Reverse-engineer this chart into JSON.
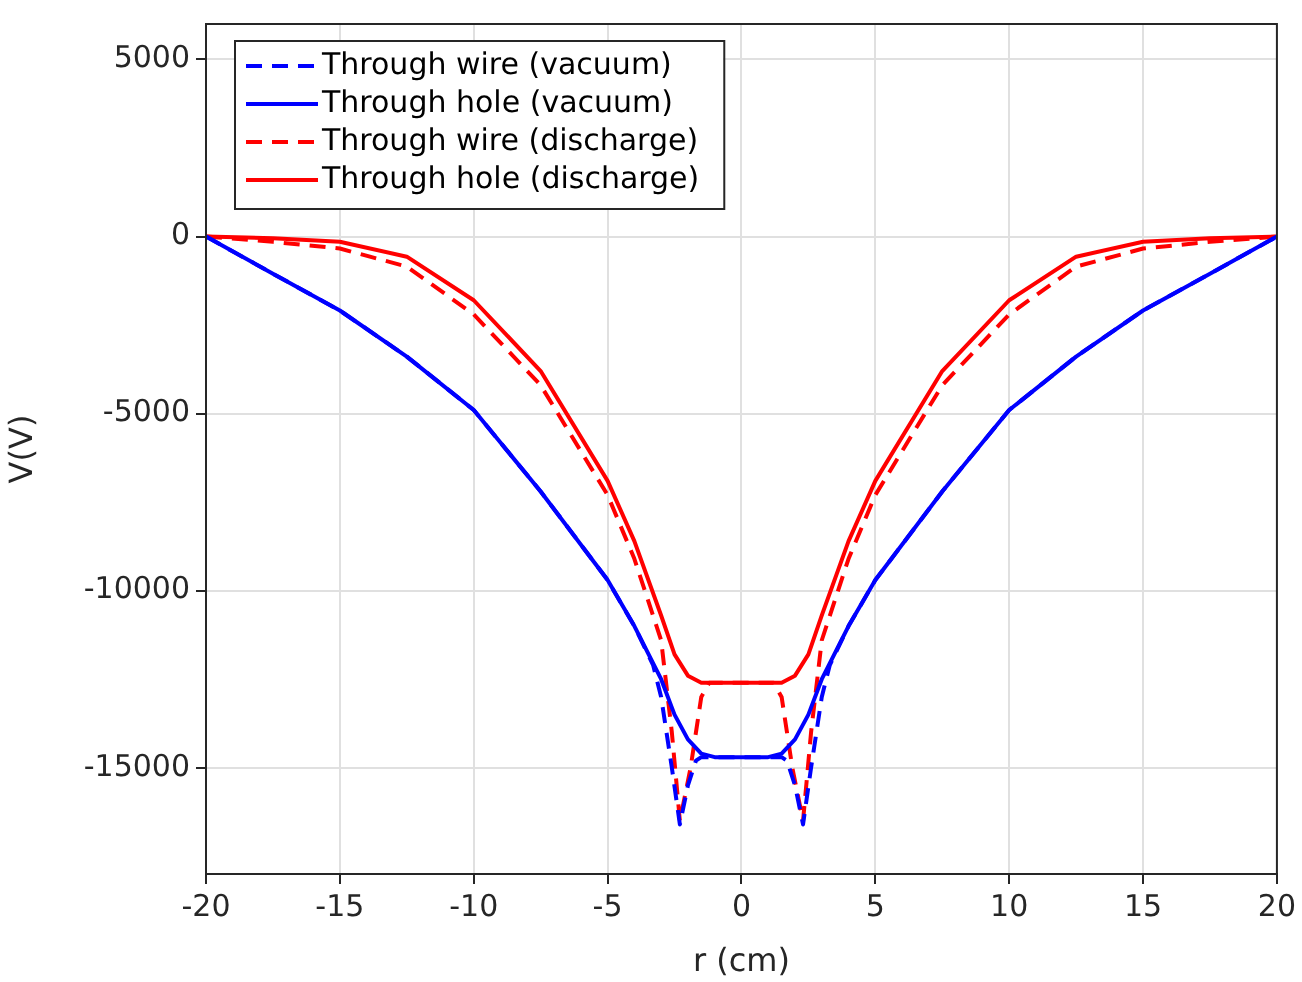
{
  "chart_data": {
    "type": "line",
    "xlabel": "r (cm)",
    "ylabel": "V(V)",
    "xlim": [
      -20,
      20
    ],
    "ylim": [
      -18000,
      6000
    ],
    "xticks": [
      -20,
      -15,
      -10,
      -5,
      0,
      5,
      10,
      15,
      20
    ],
    "yticks": [
      -15000,
      -10000,
      -5000,
      0,
      5000
    ],
    "grid": true,
    "legend": "top left",
    "marker": "none",
    "series": [
      {
        "name": "Through wire (vacuum)",
        "color": "#0000ff",
        "line_style": "dashed",
        "x": [
          -20,
          -17.5,
          -15,
          -12.5,
          -10,
          -7.5,
          -5,
          -4,
          -3.3,
          -3,
          -2.6,
          -2.3,
          -2,
          -1.7,
          -1.5,
          1.5,
          1.7,
          2,
          2.3,
          2.6,
          3,
          3.3,
          4,
          5,
          7.5,
          10,
          12.5,
          15,
          17.5,
          20
        ],
        "values": [
          0,
          -1050,
          -2090,
          -3390,
          -4900,
          -7200,
          -9700,
          -11000,
          -12100,
          -13000,
          -15000,
          -16600,
          -15500,
          -14800,
          -14700,
          -14700,
          -14800,
          -15500,
          -16600,
          -15000,
          -13000,
          -12100,
          -11000,
          -9700,
          -7200,
          -4900,
          -3390,
          -2090,
          -1050,
          0
        ]
      },
      {
        "name": "Through hole (vacuum)",
        "color": "#0000ff",
        "line_style": "solid",
        "x": [
          -20,
          -17.5,
          -15,
          -12.5,
          -10,
          -7.5,
          -5,
          -4,
          -3,
          -2.5,
          -2,
          -1.5,
          -1,
          1,
          1.5,
          2,
          2.5,
          3,
          4,
          5,
          7.5,
          10,
          12.5,
          15,
          17.5,
          20
        ],
        "values": [
          0,
          -1050,
          -2090,
          -3390,
          -4900,
          -7200,
          -9700,
          -11000,
          -12500,
          -13500,
          -14200,
          -14600,
          -14700,
          -14700,
          -14600,
          -14200,
          -13500,
          -12500,
          -11000,
          -9700,
          -7200,
          -4900,
          -3390,
          -2090,
          -1050,
          0
        ]
      },
      {
        "name": "Through wire (discharge)",
        "color": "#ff0000",
        "line_style": "dashed",
        "x": [
          -20,
          -17.5,
          -15,
          -12.5,
          -10,
          -7.5,
          -5,
          -4,
          -3,
          -2.6,
          -2.3,
          -1.9,
          -1.5,
          -1.2,
          1.2,
          1.5,
          1.9,
          2.3,
          2.6,
          3,
          4,
          5,
          7.5,
          10,
          12.5,
          15,
          17.5,
          20
        ],
        "values": [
          0,
          -150,
          -340,
          -850,
          -2200,
          -4200,
          -7300,
          -9100,
          -11400,
          -14000,
          -16500,
          -15000,
          -13000,
          -12600,
          -12600,
          -13000,
          -15000,
          -16500,
          -14000,
          -11400,
          -9100,
          -7300,
          -4200,
          -2200,
          -850,
          -340,
          -150,
          0
        ]
      },
      {
        "name": "Through hole (discharge)",
        "color": "#ff0000",
        "line_style": "solid",
        "x": [
          -20,
          -17.5,
          -15,
          -12.5,
          -10,
          -7.5,
          -5,
          -4,
          -3,
          -2.5,
          -2,
          -1.5,
          1.5,
          2,
          2.5,
          3,
          4,
          5,
          7.5,
          10,
          12.5,
          15,
          17.5,
          20
        ],
        "values": [
          0,
          -50,
          -150,
          -570,
          -1800,
          -3800,
          -6900,
          -8600,
          -10700,
          -11800,
          -12400,
          -12600,
          -12600,
          -12400,
          -11800,
          -10700,
          -8600,
          -6900,
          -3800,
          -1800,
          -570,
          -150,
          -50,
          0
        ]
      }
    ]
  }
}
